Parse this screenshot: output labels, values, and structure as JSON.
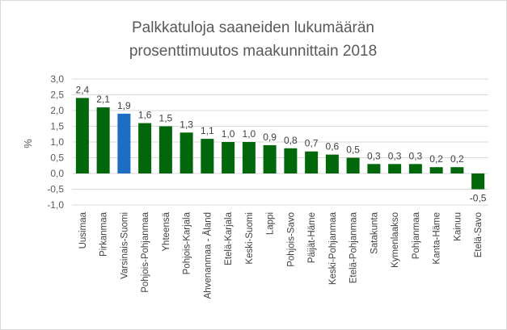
{
  "chart_data": {
    "type": "bar",
    "title": [
      "Palkkatuloja saaneiden lukumäärän",
      "prosenttimuutos maakunnittain 2018"
    ],
    "xlabel": "",
    "ylabel": "%",
    "ylim": [
      -1.0,
      3.0
    ],
    "yticks": [
      3.0,
      2.5,
      2.0,
      1.5,
      1.0,
      0.5,
      0.0,
      -0.5,
      -1.0
    ],
    "ytick_labels": [
      "3,0",
      "2,5",
      "2,0",
      "1,5",
      "1,0",
      "0,5",
      "0,0",
      "-0,5",
      "-1,0"
    ],
    "grid": true,
    "legend": "none",
    "categories": [
      "Uusimaa",
      "Pirkanmaa",
      "Varsinais-Suomi",
      "Pohjois-Pohjanmaa",
      "Yhteensä",
      "Pohjois-Karjala",
      "Ahvenanmaa - Åland",
      "Etelä-Karjala",
      "Keski-Suomi",
      "Lappi",
      "Pohjois-Savo",
      "Päijät-Häme",
      "Keski-Pohjanmaa",
      "Etelä-Pohjanmaa",
      "Satakunta",
      "Kymenlaakso",
      "Pohjanmaa",
      "Kanta-Häme",
      "Kainuu",
      "Etelä-Savo"
    ],
    "values": [
      2.4,
      2.1,
      1.9,
      1.6,
      1.5,
      1.3,
      1.1,
      1.0,
      1.0,
      0.9,
      0.8,
      0.7,
      0.6,
      0.5,
      0.3,
      0.3,
      0.3,
      0.2,
      0.2,
      -0.5
    ],
    "data_labels": [
      "2,4",
      "2,1",
      "1,9",
      "1,6",
      "1,5",
      "1,3",
      "1,1",
      "1,0",
      "1,0",
      "0,9",
      "0,8",
      "0,7",
      "0,6",
      "0,5",
      "0,3",
      "0,3",
      "0,3",
      "0,2",
      "0,2",
      "-0,5"
    ],
    "bar_colors": [
      "#00680a",
      "#00680a",
      "#1e6dc4",
      "#00680a",
      "#00680a",
      "#00680a",
      "#00680a",
      "#00680a",
      "#00680a",
      "#00680a",
      "#00680a",
      "#00680a",
      "#00680a",
      "#00680a",
      "#00680a",
      "#00680a",
      "#00680a",
      "#00680a",
      "#00680a",
      "#00680a"
    ],
    "colors": {
      "default": "#00680a",
      "highlight": "#1e6dc4",
      "grid": "#d9d9d9",
      "text": "#595959"
    }
  }
}
